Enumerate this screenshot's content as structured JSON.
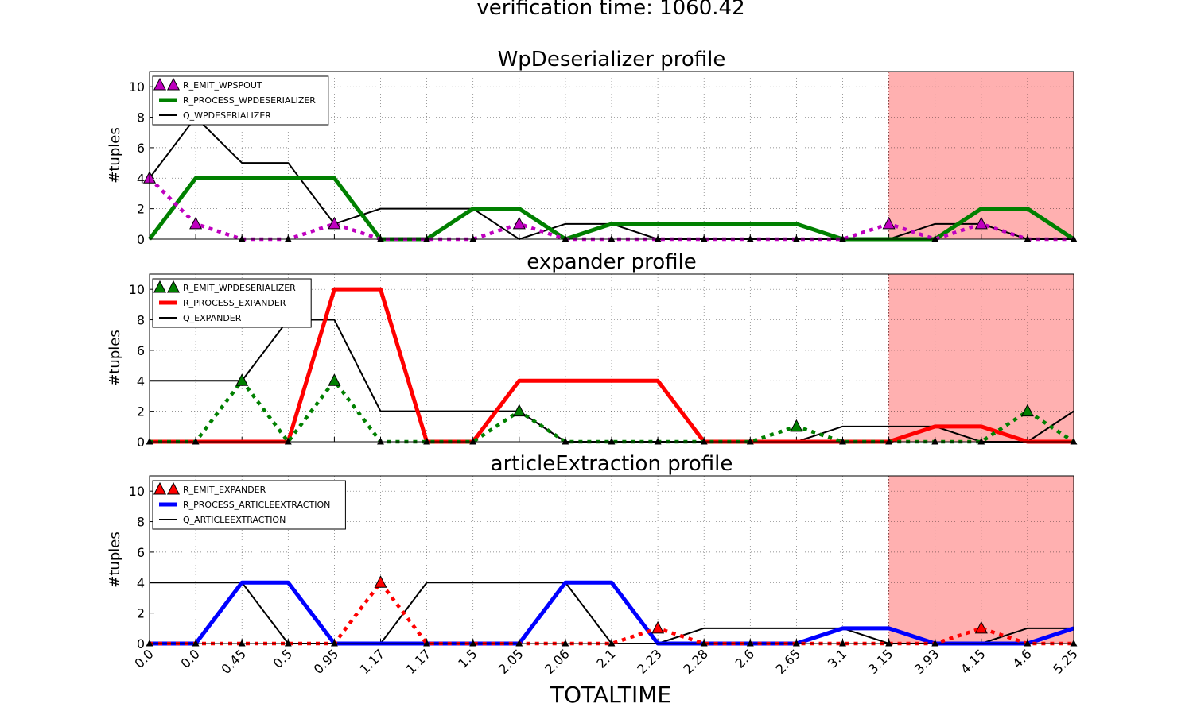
{
  "figure": {
    "suptitle": "verification time: 1060.42",
    "xlabel": "TOTALTIME",
    "xticklabels": [
      "0.0",
      "0.0",
      "0.45",
      "0.5",
      "0.95",
      "1.17",
      "1.17",
      "1.5",
      "2.05",
      "2.06",
      "2.1",
      "2.23",
      "2.28",
      "2.6",
      "2.65",
      "3.1",
      "3.15",
      "3.93",
      "4.15",
      "4.6",
      "5.25"
    ],
    "yticks": [
      0,
      2,
      4,
      6,
      8,
      10
    ],
    "highlight_start_index": 16,
    "highlight_color": "#ffb0b0",
    "grid": true
  },
  "chart_data": [
    {
      "type": "line",
      "title": "WpDeserializer profile",
      "ylabel": "#tuples",
      "ylim": [
        0,
        11
      ],
      "legend_position": "upper-left",
      "series": [
        {
          "name": "R_EMIT_WPSPOUT",
          "color": "#bf00bf",
          "style": "dotted-triangle",
          "values": [
            4,
            1,
            0,
            0,
            1,
            0,
            0,
            0,
            1,
            0,
            0,
            0,
            0,
            0,
            0,
            0,
            1,
            0,
            1,
            0,
            0
          ]
        },
        {
          "name": "R_PROCESS_WPDESERIALIZER",
          "color": "#008000",
          "style": "thick",
          "values": [
            0,
            4,
            4,
            4,
            4,
            0,
            0,
            2,
            2,
            0,
            1,
            1,
            1,
            1,
            1,
            0,
            0,
            0,
            2,
            2,
            0
          ]
        },
        {
          "name": "Q_WPDESERIALIZER",
          "color": "#000000",
          "style": "thin",
          "values": [
            4,
            8,
            5,
            5,
            1,
            2,
            2,
            2,
            0,
            1,
            1,
            0,
            0,
            0,
            0,
            0,
            0,
            1,
            1,
            0,
            0
          ]
        }
      ]
    },
    {
      "type": "line",
      "title": "expander profile",
      "ylabel": "#tuples",
      "ylim": [
        0,
        11
      ],
      "legend_position": "upper-left",
      "series": [
        {
          "name": "R_EMIT_WPDESERIALIZER",
          "color": "#008000",
          "style": "dotted-triangle",
          "values": [
            0,
            0,
            4,
            0,
            4,
            0,
            0,
            0,
            2,
            0,
            0,
            0,
            0,
            0,
            1,
            0,
            0,
            0,
            0,
            2,
            0
          ]
        },
        {
          "name": "R_PROCESS_EXPANDER",
          "color": "#ff0000",
          "style": "thick",
          "values": [
            0,
            0,
            0,
            0,
            10,
            10,
            0,
            0,
            4,
            4,
            4,
            4,
            0,
            0,
            0,
            0,
            0,
            1,
            1,
            0,
            0
          ]
        },
        {
          "name": "Q_EXPANDER",
          "color": "#000000",
          "style": "thin",
          "values": [
            4,
            4,
            4,
            8,
            8,
            2,
            2,
            2,
            2,
            0,
            0,
            0,
            0,
            0,
            0,
            1,
            1,
            1,
            0,
            0,
            2
          ]
        }
      ]
    },
    {
      "type": "line",
      "title": "articleExtraction profile",
      "ylabel": "#tuples",
      "ylim": [
        0,
        11
      ],
      "legend_position": "upper-left",
      "series": [
        {
          "name": "R_EMIT_EXPANDER",
          "color": "#ff0000",
          "style": "dotted-triangle",
          "values": [
            0,
            0,
            0,
            0,
            0,
            4,
            0,
            0,
            0,
            0,
            0,
            1,
            0,
            0,
            0,
            0,
            0,
            0,
            1,
            0,
            0
          ]
        },
        {
          "name": "R_PROCESS_ARTICLEEXTRACTION",
          "color": "#0000ff",
          "style": "thick",
          "values": [
            0,
            0,
            4,
            4,
            0,
            0,
            0,
            0,
            0,
            4,
            4,
            0,
            0,
            0,
            0,
            1,
            1,
            0,
            0,
            0,
            1
          ]
        },
        {
          "name": "Q_ARTICLEEXTRACTION",
          "color": "#000000",
          "style": "thin",
          "values": [
            4,
            4,
            4,
            0,
            0,
            0,
            4,
            4,
            4,
            4,
            0,
            0,
            1,
            1,
            1,
            1,
            0,
            0,
            0,
            1,
            1
          ]
        }
      ]
    }
  ]
}
